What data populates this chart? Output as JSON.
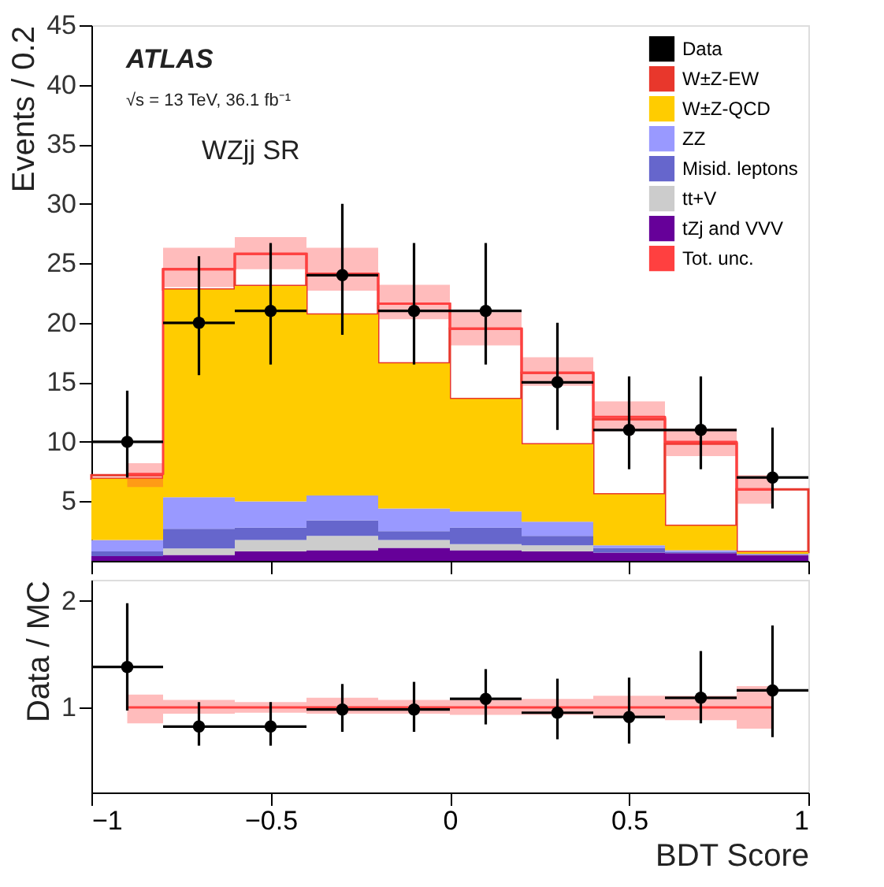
{
  "chart_data": [
    {
      "type": "bar",
      "ylabel": "Events / 0.2",
      "stacked": true,
      "legend": "top right",
      "grid": false,
      "tick_labels": "y",
      "annotations": [
        "ATLAS",
        "√s = 13 TeV, 36.1 fb⁻¹",
        "WZjj SR"
      ],
      "x": [
        -0.9,
        -0.7,
        -0.5,
        -0.3,
        -0.1,
        0.1,
        0.3,
        0.5,
        0.7,
        0.9
      ],
      "xlim": [
        -1,
        1
      ],
      "xticks": [
        -1,
        -0.5,
        0,
        0.5,
        1
      ],
      "ylim": [
        0,
        45
      ],
      "yticks": [
        5,
        10,
        15,
        20,
        25,
        30,
        35,
        40,
        45
      ],
      "series": [
        {
          "name": "tZj and VVV",
          "color": "#660099",
          "values": [
            0.4,
            0.5,
            0.8,
            0.9,
            1.1,
            0.9,
            0.8,
            0.7,
            0.65,
            0.5
          ]
        },
        {
          "name": "tt+V",
          "color": "#cccccc",
          "values": [
            null,
            0.55,
            0.95,
            1.2,
            0.65,
            0.5,
            0.5,
            null,
            null,
            0.05
          ]
        },
        {
          "name": "Misid. leptons",
          "color": "#6666cc",
          "values": [
            0.4,
            1.65,
            1.05,
            1.3,
            0.75,
            1.4,
            0.8,
            0.4,
            0.1,
            0.05
          ]
        },
        {
          "name": "ZZ",
          "color": "#9999ff",
          "values": [
            0.95,
            2.65,
            2.2,
            2.1,
            1.9,
            1.35,
            1.2,
            0.2,
            0.15,
            0.0
          ]
        },
        {
          "name": "W±Z-QCD",
          "color": "#ffcc00",
          "values": [
            5.15,
            17.45,
            18.1,
            15.2,
            12.2,
            9.45,
            6.5,
            4.3,
            2.05,
            0.15
          ]
        },
        {
          "name": "W±Z-EW",
          "color": "#e8372c",
          "values": [
            0.3,
            1.7,
            2.7,
            3.4,
            5.0,
            5.9,
            6.0,
            6.3,
            6.9,
            5.25
          ]
        },
        {
          "name": "Data",
          "type": "scatter",
          "color": "#000000",
          "marker": "circle",
          "x": [
            -0.9,
            -0.7,
            -0.5,
            -0.3,
            -0.1,
            0.1,
            0.3,
            0.5,
            0.7,
            0.9
          ],
          "values": [
            10,
            20,
            21,
            24,
            21,
            21,
            15,
            11,
            11,
            7
          ],
          "errors": [
            [
              7,
              14.3
            ],
            [
              15.6,
              25.6
            ],
            [
              16.5,
              26.7
            ],
            [
              19,
              30
            ],
            [
              16.5,
              26.7
            ],
            [
              16.5,
              26.7
            ],
            [
              11,
              20
            ],
            [
              7.7,
              15.5
            ],
            [
              7.7,
              15.5
            ],
            [
              4.4,
              11.2
            ]
          ],
          "xerrors": [
            0.1,
            0.1,
            0.1,
            0.1,
            0.1,
            0.1,
            0.1,
            0.1,
            0.1,
            0.1
          ]
        },
        {
          "name": "Tot. unc.",
          "type": "step",
          "color": "#ff4040",
          "x": [
            -0.9,
            -0.7,
            -0.5,
            -0.3,
            -0.1,
            0.1,
            0.3,
            0.5,
            0.7,
            0.9
          ],
          "values": [
            7.3,
            24.5,
            25.8,
            24.1,
            21.6,
            19.5,
            15.8,
            12.1,
            10.0,
            6.0
          ],
          "lower": [
            6.2,
            23,
            24.5,
            22.7,
            20.3,
            18.1,
            14.7,
            10.9,
            8.8,
            4.8
          ],
          "upper": [
            8.2,
            26.3,
            27.2,
            26.3,
            23.2,
            20.9,
            17.1,
            13.4,
            11.1,
            7.2
          ]
        }
      ]
    },
    {
      "type": "scatter",
      "xlabel": "BDT Score",
      "ylabel": "Data / MC",
      "grid": false,
      "legend": false,
      "xlim": [
        -1,
        1
      ],
      "xticks": [
        -1,
        -0.5,
        0,
        0.5,
        1
      ],
      "ylim": [
        0.2,
        2.2
      ],
      "yticks": [
        1,
        2
      ],
      "series": [
        {
          "type": "step",
          "color": "#ff4040",
          "x": [
            -0.9,
            -0.7,
            -0.5,
            -0.3,
            -0.1,
            0.1,
            0.3,
            0.5,
            0.7,
            0.9
          ],
          "values": [
            1,
            1,
            1,
            1,
            1,
            1,
            1,
            1,
            1,
            1
          ],
          "lower": [
            0.85,
            0.94,
            0.95,
            0.94,
            0.94,
            0.93,
            0.93,
            0.9,
            0.88,
            0.8
          ],
          "upper": [
            1.12,
            1.07,
            1.05,
            1.09,
            1.07,
            1.07,
            1.08,
            1.11,
            1.11,
            1.2
          ]
        },
        {
          "type": "scatter",
          "color": "#000000",
          "marker": "circle",
          "x": [
            -0.9,
            -0.7,
            -0.5,
            -0.3,
            -0.1,
            0.1,
            0.3,
            0.5,
            0.7,
            0.9
          ],
          "values": [
            1.38,
            0.82,
            0.82,
            0.98,
            0.98,
            1.08,
            0.95,
            0.91,
            1.09,
            1.16
          ],
          "errors": [
            [
              0.97,
              1.98
            ],
            [
              0.64,
              1.05
            ],
            [
              0.64,
              1.05
            ],
            [
              0.77,
              1.22
            ],
            [
              0.77,
              1.24
            ],
            [
              0.84,
              1.36
            ],
            [
              0.7,
              1.27
            ],
            [
              0.66,
              1.28
            ],
            [
              0.85,
              1.53
            ],
            [
              0.72,
              1.77
            ]
          ],
          "xerrors": [
            0.1,
            0.1,
            0.1,
            0.1,
            0.1,
            0.1,
            0.1,
            0.1,
            0.1,
            0.1
          ]
        }
      ]
    }
  ]
}
